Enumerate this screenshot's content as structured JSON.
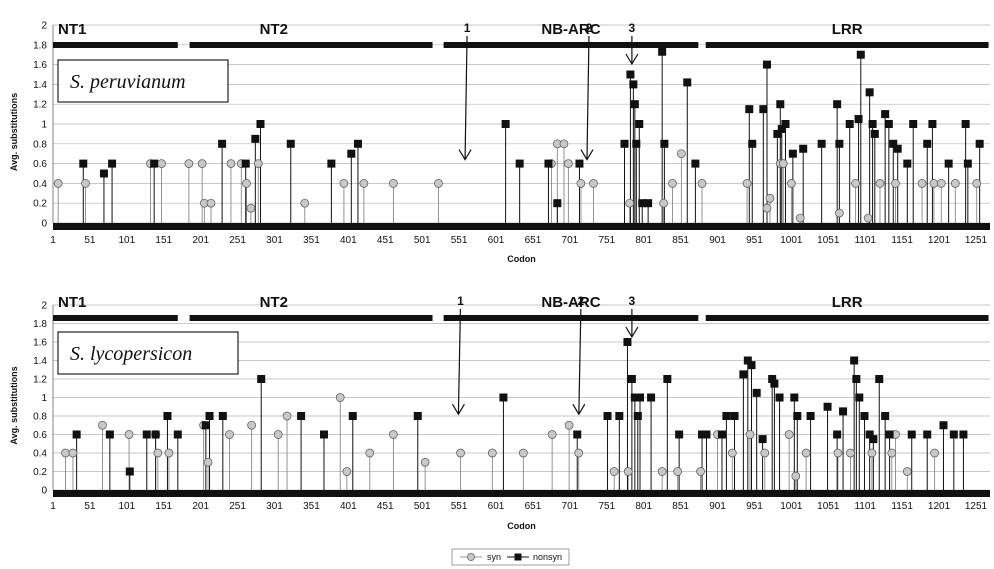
{
  "chart_data": [
    {
      "type": "scatter",
      "title": "S. peruvianum",
      "xlabel": "Codon",
      "ylabel": "Avg. substitutions",
      "xlim": [
        1,
        1270
      ],
      "ylim": [
        0,
        2
      ],
      "yticks": [
        "0",
        "0.2",
        "0.4",
        "0.6",
        "0.8",
        "1",
        "1.2",
        "1.4",
        "1.6",
        "1.8",
        "2"
      ],
      "xticks": [
        "1",
        "51",
        "101",
        "151",
        "201",
        "251",
        "301",
        "351",
        "401",
        "451",
        "501",
        "551",
        "601",
        "651",
        "701",
        "751",
        "801",
        "851",
        "901",
        "951",
        "1001",
        "1051",
        "1101",
        "1151",
        "1201",
        "1251"
      ],
      "grid": true,
      "domains": [
        {
          "name": "NT1",
          "start": 1,
          "end": 170
        },
        {
          "name": "NT2",
          "start": 186,
          "end": 515
        },
        {
          "name": "NB-ARC",
          "start": 530,
          "end": 875
        },
        {
          "name": "LRR",
          "start": 885,
          "end": 1268
        }
      ],
      "markers": [
        {
          "label": "1",
          "codon": 555
        },
        {
          "label": "2",
          "codon": 735
        },
        {
          "label": "3",
          "codon": 785
        }
      ],
      "series": [
        {
          "name": "syn",
          "color": "#c8c8c8",
          "points": [
            [
              8,
              0.4
            ],
            [
              45,
              0.4
            ],
            [
              133,
              0.6
            ],
            [
              148,
              0.6
            ],
            [
              185,
              0.6
            ],
            [
              203,
              0.6
            ],
            [
              206,
              0.2
            ],
            [
              215,
              0.2
            ],
            [
              242,
              0.6
            ],
            [
              256,
              0.6
            ],
            [
              263,
              0.4
            ],
            [
              269,
              0.15
            ],
            [
              279,
              0.6
            ],
            [
              342,
              0.2
            ],
            [
              395,
              0.4
            ],
            [
              422,
              0.4
            ],
            [
              462,
              0.4
            ],
            [
              523,
              0.4
            ],
            [
              676,
              0.6
            ],
            [
              684,
              0.8
            ],
            [
              693,
              0.8
            ],
            [
              699,
              0.6
            ],
            [
              716,
              0.4
            ],
            [
              733,
              0.4
            ],
            [
              782,
              0.2
            ],
            [
              828,
              0.2
            ],
            [
              840,
              0.4
            ],
            [
              852,
              0.7
            ],
            [
              880,
              0.4
            ],
            [
              941,
              0.4
            ],
            [
              968,
              0.15
            ],
            [
              972,
              0.25
            ],
            [
              986,
              0.6
            ],
            [
              990,
              0.6
            ],
            [
              1001,
              0.4
            ],
            [
              1013,
              0.05
            ],
            [
              1066,
              0.1
            ],
            [
              1088,
              0.4
            ],
            [
              1105,
              0.05
            ],
            [
              1121,
              0.4
            ],
            [
              1142,
              0.4
            ],
            [
              1178,
              0.4
            ],
            [
              1194,
              0.4
            ],
            [
              1204,
              0.4
            ],
            [
              1223,
              0.4
            ],
            [
              1252,
              0.4
            ]
          ]
        },
        {
          "name": "nonsyn",
          "color": "#111111",
          "points": [
            [
              42,
              0.6
            ],
            [
              70,
              0.5
            ],
            [
              81,
              0.6
            ],
            [
              138,
              0.6
            ],
            [
              230,
              0.8
            ],
            [
              262,
              0.6
            ],
            [
              275,
              0.85
            ],
            [
              282,
              1.0
            ],
            [
              323,
              0.8
            ],
            [
              378,
              0.6
            ],
            [
              405,
              0.7
            ],
            [
              414,
              0.8
            ],
            [
              614,
              1.0
            ],
            [
              633,
              0.6
            ],
            [
              672,
              0.6
            ],
            [
              684,
              0.2
            ],
            [
              714,
              0.6
            ],
            [
              775,
              0.8
            ],
            [
              783,
              1.5
            ],
            [
              787,
              1.4
            ],
            [
              789,
              1.2
            ],
            [
              791,
              0.8
            ],
            [
              795,
              1.0
            ],
            [
              799,
              0.2
            ],
            [
              807,
              0.2
            ],
            [
              826,
              1.73
            ],
            [
              829,
              0.8
            ],
            [
              860,
              1.42
            ],
            [
              871,
              0.6
            ],
            [
              944,
              1.15
            ],
            [
              948,
              0.8
            ],
            [
              963,
              1.15
            ],
            [
              968,
              1.6
            ],
            [
              982,
              0.9
            ],
            [
              986,
              1.2
            ],
            [
              988,
              0.95
            ],
            [
              993,
              1.0
            ],
            [
              1003,
              0.7
            ],
            [
              1017,
              0.75
            ],
            [
              1042,
              0.8
            ],
            [
              1063,
              1.2
            ],
            [
              1066,
              0.8
            ],
            [
              1080,
              1.0
            ],
            [
              1092,
              1.05
            ],
            [
              1095,
              1.7
            ],
            [
              1107,
              1.32
            ],
            [
              1111,
              1.0
            ],
            [
              1114,
              0.9
            ],
            [
              1128,
              1.1
            ],
            [
              1133,
              1.0
            ],
            [
              1139,
              0.8
            ],
            [
              1145,
              0.75
            ],
            [
              1158,
              0.6
            ],
            [
              1166,
              1.0
            ],
            [
              1185,
              0.8
            ],
            [
              1192,
              1.0
            ],
            [
              1214,
              0.6
            ],
            [
              1237,
              1.0
            ],
            [
              1240,
              0.6
            ],
            [
              1256,
              0.8
            ]
          ]
        }
      ]
    },
    {
      "type": "scatter",
      "title": "S. lycopersicon",
      "xlabel": "Codon",
      "ylabel": "Avg. substitutions",
      "xlim": [
        1,
        1270
      ],
      "ylim": [
        0,
        2
      ],
      "yticks": [
        "0",
        "0.2",
        "0.4",
        "0.6",
        "0.8",
        "1",
        "1.2",
        "1.4",
        "1.6",
        "1.8",
        "2"
      ],
      "xticks": [
        "1",
        "51",
        "101",
        "151",
        "201",
        "251",
        "301",
        "351",
        "401",
        "451",
        "501",
        "551",
        "601",
        "651",
        "701",
        "751",
        "801",
        "851",
        "901",
        "951",
        "1001",
        "1051",
        "1101",
        "1151",
        "1201",
        "1251"
      ],
      "grid": true,
      "domains": [
        {
          "name": "NT1",
          "start": 1,
          "end": 170
        },
        {
          "name": "NT2",
          "start": 186,
          "end": 515
        },
        {
          "name": "NB-ARC",
          "start": 530,
          "end": 875
        },
        {
          "name": "LRR",
          "start": 885,
          "end": 1268
        }
      ],
      "markers": [
        {
          "label": "1",
          "codon": 546
        },
        {
          "label": "2",
          "codon": 724
        },
        {
          "label": "3",
          "codon": 785
        }
      ],
      "series": [
        {
          "name": "syn",
          "color": "#c8c8c8",
          "points": [
            [
              18,
              0.4
            ],
            [
              28,
              0.4
            ],
            [
              68,
              0.7
            ],
            [
              104,
              0.6
            ],
            [
              140,
              0.6
            ],
            [
              143,
              0.4
            ],
            [
              158,
              0.4
            ],
            [
              205,
              0.7
            ],
            [
              211,
              0.3
            ],
            [
              240,
              0.6
            ],
            [
              270,
              0.7
            ],
            [
              306,
              0.6
            ],
            [
              318,
              0.8
            ],
            [
              390,
              1.0
            ],
            [
              399,
              0.2
            ],
            [
              430,
              0.4
            ],
            [
              462,
              0.6
            ],
            [
              505,
              0.3
            ],
            [
              553,
              0.4
            ],
            [
              596,
              0.4
            ],
            [
              638,
              0.4
            ],
            [
              677,
              0.6
            ],
            [
              700,
              0.7
            ],
            [
              713,
              0.4
            ],
            [
              761,
              0.2
            ],
            [
              780,
              0.2
            ],
            [
              826,
              0.2
            ],
            [
              847,
              0.2
            ],
            [
              878,
              0.2
            ],
            [
              901,
              0.6
            ],
            [
              921,
              0.4
            ],
            [
              945,
              0.6
            ],
            [
              965,
              0.4
            ],
            [
              998,
              0.6
            ],
            [
              1007,
              0.15
            ],
            [
              1021,
              0.4
            ],
            [
              1064,
              0.4
            ],
            [
              1081,
              0.4
            ],
            [
              1110,
              0.4
            ],
            [
              1137,
              0.4
            ],
            [
              1142,
              0.6
            ],
            [
              1158,
              0.2
            ],
            [
              1195,
              0.4
            ]
          ]
        },
        {
          "name": "nonsyn",
          "color": "#111111",
          "points": [
            [
              33,
              0.6
            ],
            [
              78,
              0.6
            ],
            [
              105,
              0.2
            ],
            [
              128,
              0.6
            ],
            [
              140,
              0.6
            ],
            [
              156,
              0.8
            ],
            [
              170,
              0.6
            ],
            [
              208,
              0.7
            ],
            [
              213,
              0.8
            ],
            [
              231,
              0.8
            ],
            [
              283,
              1.2
            ],
            [
              337,
              0.8
            ],
            [
              368,
              0.6
            ],
            [
              407,
              0.8
            ],
            [
              495,
              0.8
            ],
            [
              611,
              1.0
            ],
            [
              711,
              0.6
            ],
            [
              752,
              0.8
            ],
            [
              768,
              0.8
            ],
            [
              779,
              1.6
            ],
            [
              785,
              1.2
            ],
            [
              789,
              1.0
            ],
            [
              793,
              0.8
            ],
            [
              796,
              1.0
            ],
            [
              811,
              1.0
            ],
            [
              833,
              1.2
            ],
            [
              849,
              0.6
            ],
            [
              880,
              0.6
            ],
            [
              886,
              0.6
            ],
            [
              907,
              0.6
            ],
            [
              913,
              0.8
            ],
            [
              924,
              0.8
            ],
            [
              936,
              1.25
            ],
            [
              942,
              1.4
            ],
            [
              947,
              1.35
            ],
            [
              954,
              1.05
            ],
            [
              962,
              0.55
            ],
            [
              975,
              1.2
            ],
            [
              978,
              1.15
            ],
            [
              985,
              1.0
            ],
            [
              1005,
              1.0
            ],
            [
              1009,
              0.8
            ],
            [
              1027,
              0.8
            ],
            [
              1050,
              0.9
            ],
            [
              1063,
              0.6
            ],
            [
              1071,
              0.85
            ],
            [
              1086,
              1.4
            ],
            [
              1089,
              1.2
            ],
            [
              1093,
              1.0
            ],
            [
              1100,
              0.8
            ],
            [
              1107,
              0.6
            ],
            [
              1112,
              0.55
            ],
            [
              1120,
              1.2
            ],
            [
              1128,
              0.8
            ],
            [
              1134,
              0.6
            ],
            [
              1164,
              0.6
            ],
            [
              1185,
              0.6
            ],
            [
              1207,
              0.7
            ],
            [
              1221,
              0.6
            ],
            [
              1234,
              0.6
            ]
          ]
        }
      ]
    }
  ],
  "legend": {
    "syn": "syn",
    "nonsyn": "nonsyn"
  }
}
